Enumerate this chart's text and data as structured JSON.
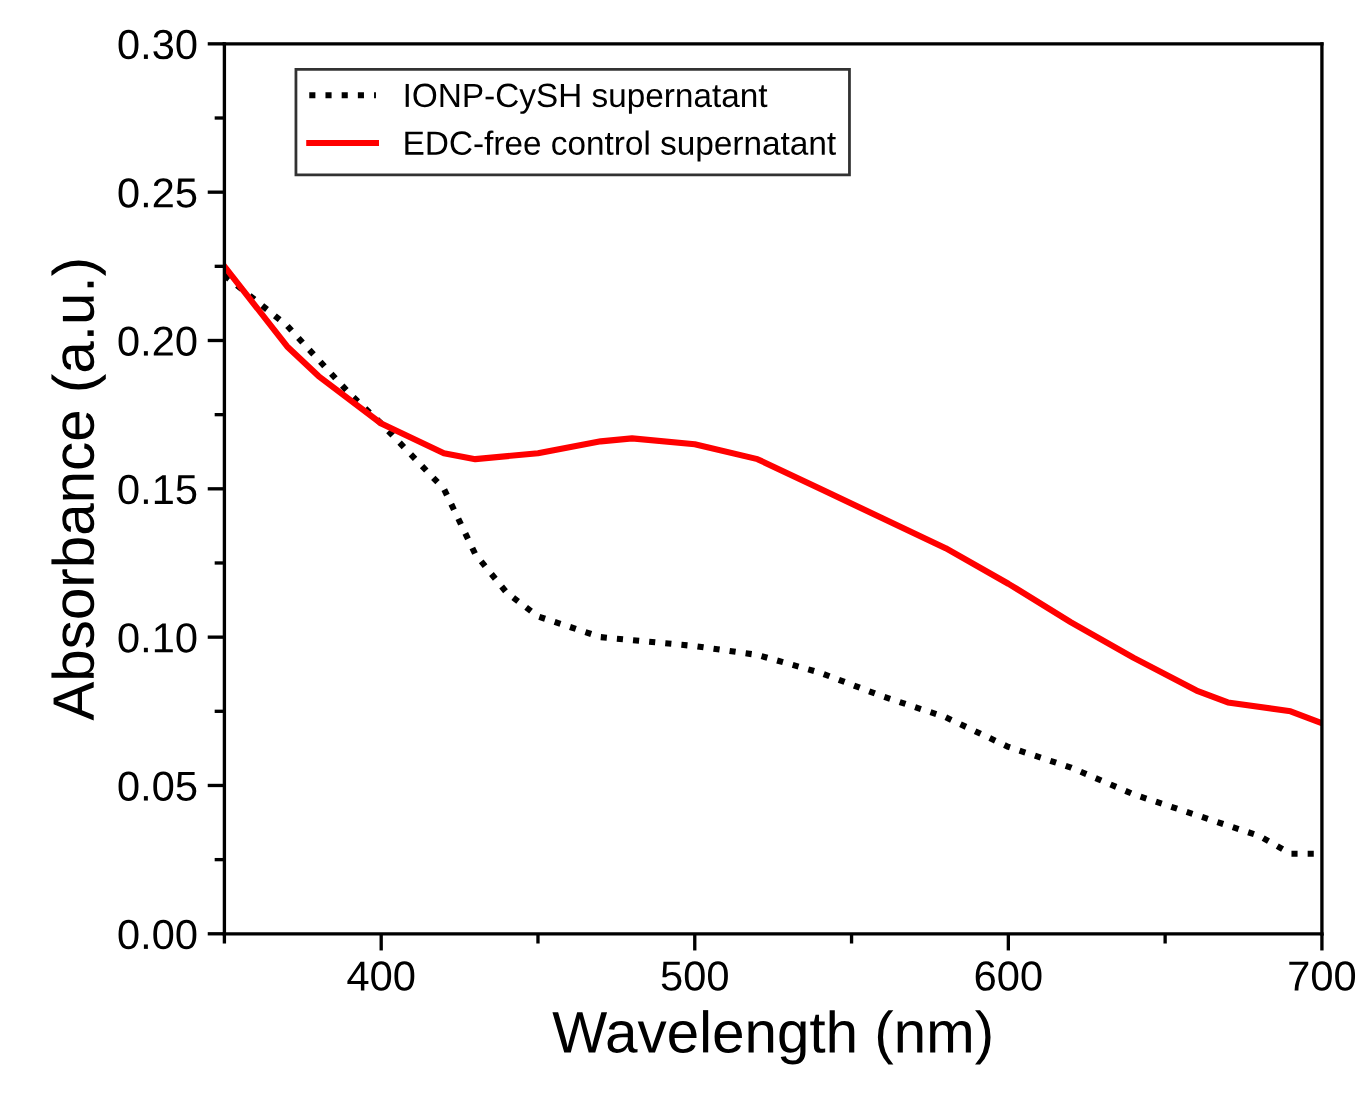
{
  "chart_data": {
    "type": "line",
    "xlabel": "Wavelength (nm)",
    "ylabel": "Absorbance (a.u.)",
    "xlim": [
      350,
      700
    ],
    "ylim": [
      0,
      0.3
    ],
    "xticks": [
      400,
      500,
      600,
      700
    ],
    "yticks": [
      {
        "value": 0,
        "label": "0.00"
      },
      {
        "value": 0.05,
        "label": "0.05"
      },
      {
        "value": 0.1,
        "label": "0.10"
      },
      {
        "value": 0.15,
        "label": "0.15"
      },
      {
        "value": 0.2,
        "label": "0.20"
      },
      {
        "value": 0.25,
        "label": "0.25"
      },
      {
        "value": 0.3,
        "label": "0.30"
      }
    ],
    "legend": "top left",
    "grid": false,
    "series": [
      {
        "name": "IONP-CySH supernatant",
        "color": "#000000",
        "line_style": "dotted",
        "x": [
          350,
          370,
          390,
          400,
          420,
          430,
          440,
          450,
          470,
          490,
          500,
          520,
          540,
          560,
          580,
          600,
          620,
          640,
          660,
          680,
          690,
          700
        ],
        "values": [
          0.222,
          0.205,
          0.182,
          0.172,
          0.15,
          0.128,
          0.115,
          0.107,
          0.1,
          0.098,
          0.097,
          0.094,
          0.088,
          0.08,
          0.073,
          0.063,
          0.056,
          0.047,
          0.04,
          0.033,
          0.027,
          0.027
        ]
      },
      {
        "name": "EDC-free control supernatant",
        "color": "#ff0000",
        "line_style": "solid",
        "x": [
          350,
          370,
          380,
          400,
          420,
          430,
          450,
          470,
          480,
          500,
          520,
          540,
          560,
          580,
          600,
          620,
          640,
          660,
          670,
          690,
          700
        ],
        "values": [
          0.225,
          0.198,
          0.188,
          0.172,
          0.162,
          0.16,
          0.162,
          0.166,
          0.167,
          0.165,
          0.16,
          0.15,
          0.14,
          0.13,
          0.118,
          0.105,
          0.093,
          0.082,
          0.078,
          0.075,
          0.071
        ]
      }
    ]
  }
}
